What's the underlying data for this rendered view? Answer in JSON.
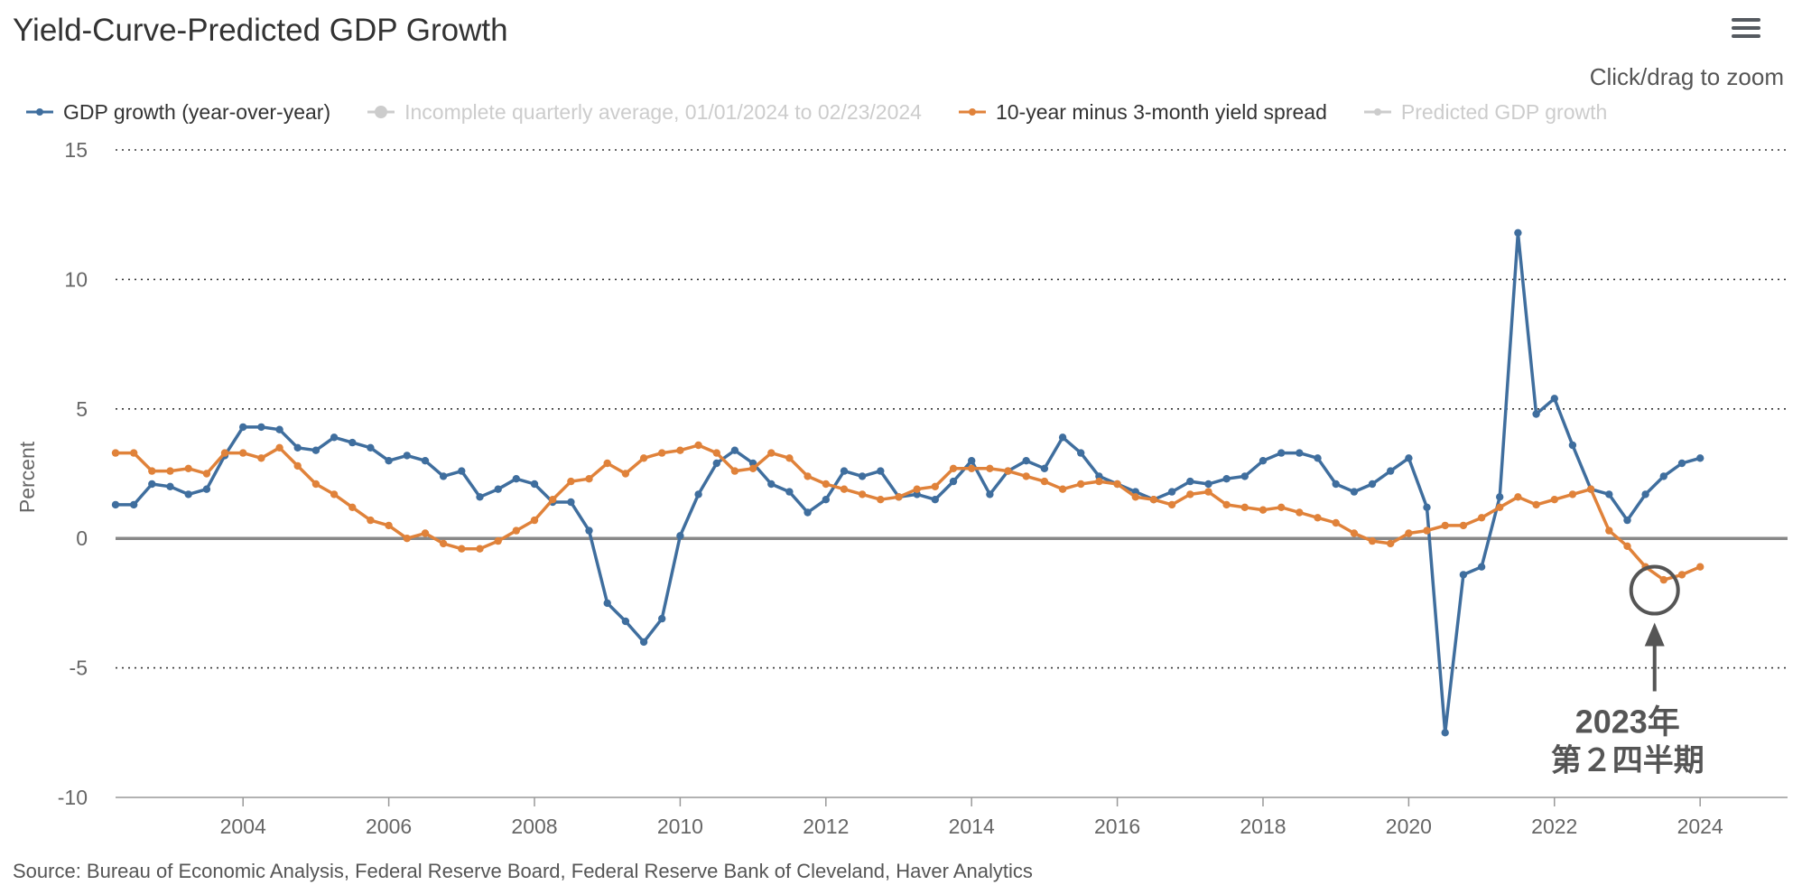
{
  "title": "Yield-Curve-Predicted GDP Growth",
  "zoom_hint": "Click/drag to zoom",
  "menu_icon": "hamburger-menu-icon",
  "source": "Source: Bureau of Economic Analysis, Federal Reserve Board, Federal Reserve Bank of Cleveland, Haver Analytics",
  "annotation": {
    "line1": "2023年",
    "line2": "第２四半期",
    "color": "#555555"
  },
  "colors": {
    "gdp": "#3f6e9e",
    "spread": "#e0823a",
    "inactive": "#cccccc",
    "grid": "#333333",
    "zero": "#888888"
  },
  "legend": [
    {
      "label": "GDP growth (year-over-year)",
      "active": true,
      "series": "gdp"
    },
    {
      "label": "Incomplete quarterly average, 01/01/2024 to 02/23/2024",
      "active": false,
      "series": "incomplete"
    },
    {
      "label": "10-year minus 3-month yield spread",
      "active": true,
      "series": "spread"
    },
    {
      "label": "Predicted GDP growth",
      "active": false,
      "series": "predicted"
    }
  ],
  "chart_data": {
    "type": "line",
    "title": "Yield-Curve-Predicted GDP Growth",
    "xlabel": "",
    "ylabel": "Percent",
    "ylim": [
      -10,
      15
    ],
    "xlim": [
      2002.25,
      2025.2
    ],
    "yticks": [
      -10,
      -5,
      0,
      5,
      10,
      15
    ],
    "xticks": [
      2004,
      2006,
      2008,
      2010,
      2012,
      2014,
      2016,
      2018,
      2020,
      2022,
      2024
    ],
    "grid": true,
    "legend_position": "top",
    "x_start": 2002.25,
    "x_step": 0.25,
    "series": [
      {
        "name": "GDP growth (year-over-year)",
        "color": "#3f6e9e",
        "values": [
          1.3,
          1.3,
          2.1,
          2.0,
          1.7,
          1.9,
          3.2,
          4.3,
          4.3,
          4.2,
          3.5,
          3.4,
          3.9,
          3.7,
          3.5,
          3.0,
          3.2,
          3.0,
          2.4,
          2.6,
          1.6,
          1.9,
          2.3,
          2.1,
          1.4,
          1.4,
          0.3,
          -2.5,
          -3.2,
          -4.0,
          -3.1,
          0.1,
          1.7,
          2.9,
          3.4,
          2.9,
          2.1,
          1.8,
          1.0,
          1.5,
          2.6,
          2.4,
          2.6,
          1.6,
          1.7,
          1.5,
          2.2,
          3.0,
          1.7,
          2.6,
          3.0,
          2.7,
          3.9,
          3.3,
          2.4,
          2.1,
          1.8,
          1.5,
          1.8,
          2.2,
          2.1,
          2.3,
          2.4,
          3.0,
          3.3,
          3.3,
          3.1,
          2.1,
          1.8,
          2.1,
          2.6,
          3.1,
          1.2,
          -7.5,
          -1.4,
          -1.1,
          1.6,
          11.8,
          4.8,
          5.4,
          3.6,
          1.9,
          1.7,
          0.7,
          1.7,
          2.4,
          2.9,
          3.1
        ]
      },
      {
        "name": "10-year minus 3-month yield spread",
        "color": "#e0823a",
        "values": [
          3.3,
          3.3,
          2.6,
          2.6,
          2.7,
          2.5,
          3.3,
          3.3,
          3.1,
          3.5,
          2.8,
          2.1,
          1.7,
          1.2,
          0.7,
          0.5,
          0.0,
          0.2,
          -0.2,
          -0.4,
          -0.4,
          -0.1,
          0.3,
          0.7,
          1.5,
          2.2,
          2.3,
          2.9,
          2.5,
          3.1,
          3.3,
          3.4,
          3.6,
          3.3,
          2.6,
          2.7,
          3.3,
          3.1,
          2.4,
          2.1,
          1.9,
          1.7,
          1.5,
          1.6,
          1.9,
          2.0,
          2.7,
          2.7,
          2.7,
          2.6,
          2.4,
          2.2,
          1.9,
          2.1,
          2.2,
          2.1,
          1.6,
          1.5,
          1.3,
          1.7,
          1.8,
          1.3,
          1.2,
          1.1,
          1.2,
          1.0,
          0.8,
          0.6,
          0.2,
          -0.1,
          -0.2,
          0.2,
          0.3,
          0.5,
          0.5,
          0.8,
          1.2,
          1.6,
          1.3,
          1.5,
          1.7,
          1.9,
          0.3,
          -0.3,
          -1.1,
          -1.6,
          -1.4,
          -1.1
        ]
      }
    ],
    "annotation": {
      "label": [
        "2023年",
        "第２四半期"
      ],
      "x": 2023.375,
      "y": -2.0
    }
  }
}
